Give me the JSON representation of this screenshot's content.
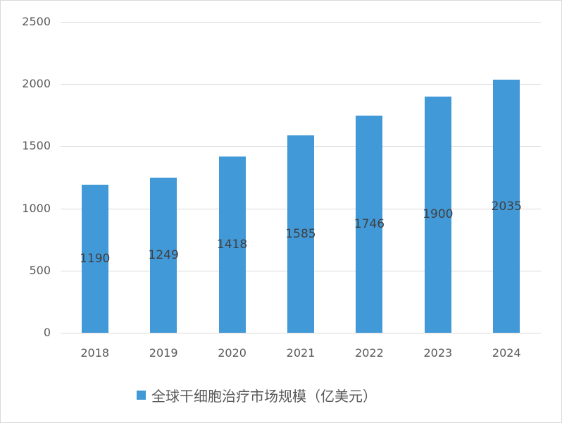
{
  "chart_data": {
    "type": "bar",
    "title": "",
    "xlabel": "",
    "ylabel": "",
    "categories": [
      "2018",
      "2019",
      "2020",
      "2021",
      "2022",
      "2023",
      "2024"
    ],
    "series": [
      {
        "name": "全球干细胞治疗市场规模（亿美元）",
        "values": [
          1190,
          1249,
          1418,
          1585,
          1746,
          1900,
          2035
        ],
        "color": "#4299d8"
      }
    ],
    "ylim": [
      0,
      2500
    ],
    "yticks": [
      "0",
      "500",
      "1000",
      "1500",
      "2000",
      "2500"
    ],
    "grid": true,
    "legend_position": "bottom",
    "data_labels": [
      "1190",
      "1249",
      "1418",
      "1585",
      "1746",
      "1900",
      "2035"
    ]
  }
}
